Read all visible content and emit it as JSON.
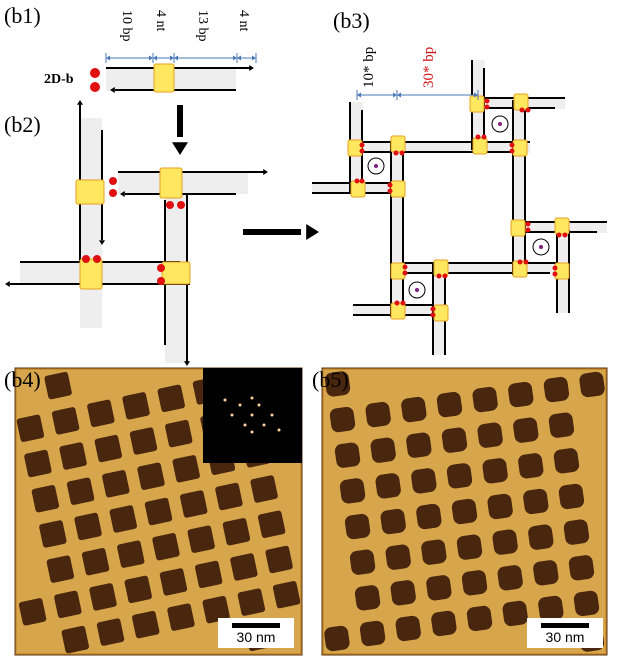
{
  "panels": {
    "b1": {
      "label": "(b1)",
      "name": "2D-b",
      "dims": [
        "10 bp",
        "4 nt",
        "13 bp",
        "4 nt"
      ]
    },
    "b2": {
      "label": "(b2)"
    },
    "b3": {
      "label": "(b3)",
      "dims": [
        "10* bp",
        "30* bp"
      ],
      "dim_colors": [
        "#000000",
        "#d01010"
      ]
    },
    "b4": {
      "label": "(b4)",
      "scale_bar": "30 nm"
    },
    "b5": {
      "label": "(b5)",
      "scale_bar": "30 nm"
    }
  },
  "colors": {
    "junction": "#ffe860",
    "junction_edge": "#e8a020",
    "sticky_end": "#e01010",
    "helix_band": "#eeeeee",
    "dim_arrow": "#4a78b8",
    "afm_light": "#e8c070",
    "afm_dark": "#3a1808"
  }
}
